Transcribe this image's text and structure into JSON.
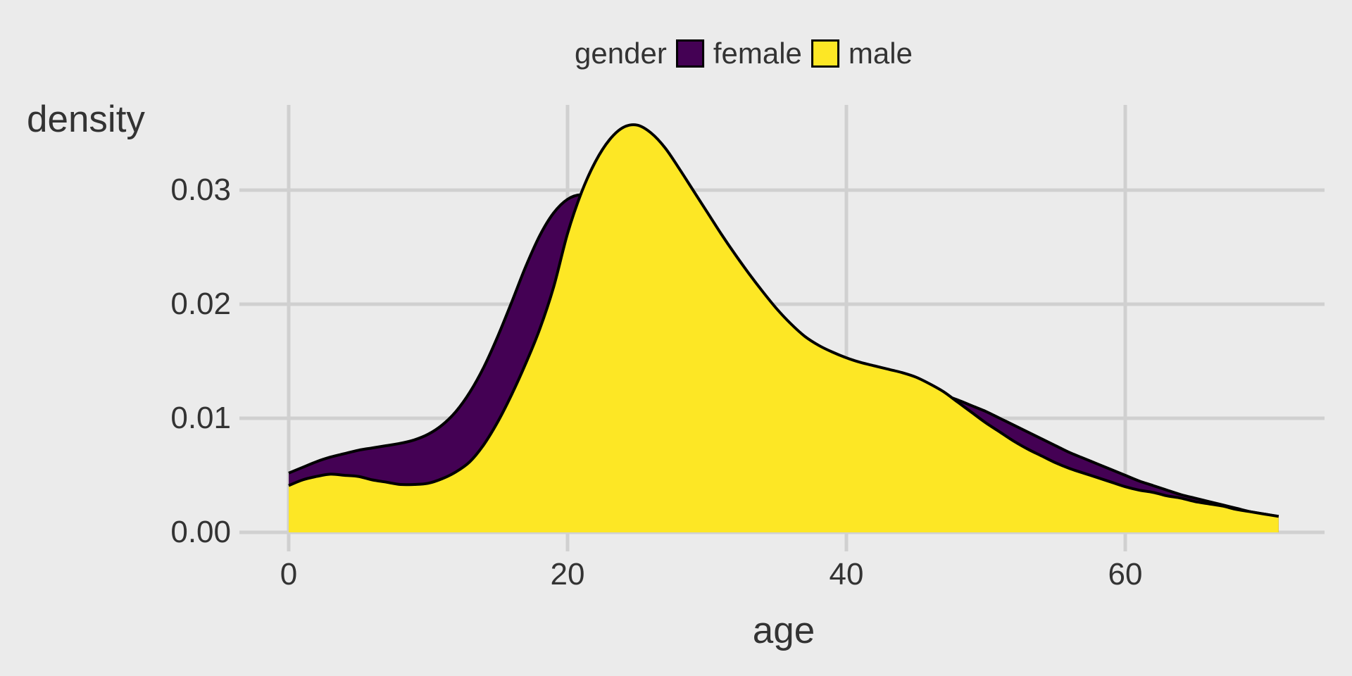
{
  "figure": {
    "background_color": "#EBEBEB",
    "grid_color": "#D0D0D0",
    "text_color": "#333333",
    "curve_outline_color": "#000000"
  },
  "legend": {
    "title": "gender",
    "items": [
      {
        "label": "female",
        "color": "#440154"
      },
      {
        "label": "male",
        "color": "#FDE725"
      }
    ]
  },
  "axes": {
    "x_title": "age",
    "y_title": "density",
    "x_tick_labels": [
      "0",
      "20",
      "40",
      "60"
    ],
    "y_tick_labels": [
      "0.00",
      "0.01",
      "0.02",
      "0.03"
    ]
  },
  "chart_data": {
    "type": "area",
    "subtype": "kernel-density",
    "title": "",
    "xlabel": "age",
    "ylabel": "density",
    "legend_title": "gender",
    "legend_position": "top-center",
    "grid": true,
    "xlim": [
      -3.3,
      74.3
    ],
    "ylim": [
      0,
      0.0375
    ],
    "x_ticks": [
      0,
      20,
      40,
      60
    ],
    "y_ticks": [
      0,
      0.01,
      0.02,
      0.03
    ],
    "series": [
      {
        "name": "female",
        "color": "#440154",
        "x": [
          0,
          1,
          2,
          3,
          4,
          5,
          6,
          7,
          8,
          9,
          10,
          11,
          12,
          13,
          14,
          15,
          16,
          17,
          18,
          19,
          20,
          21,
          22,
          23,
          24,
          25,
          26,
          27,
          28,
          29,
          30,
          31,
          32,
          33,
          34,
          35,
          36,
          37,
          38,
          39,
          40,
          41,
          42,
          43,
          44,
          45,
          46,
          47,
          48,
          49,
          50,
          51,
          52,
          53,
          54,
          55,
          56,
          57,
          58,
          59,
          60,
          61,
          62,
          63,
          64,
          65,
          66,
          67,
          68,
          69,
          70,
          71
        ],
        "y": [
          0.0052,
          0.0057,
          0.0062,
          0.0066,
          0.0069,
          0.0072,
          0.0074,
          0.0076,
          0.0078,
          0.0081,
          0.0086,
          0.0094,
          0.0106,
          0.0123,
          0.0145,
          0.0172,
          0.0202,
          0.0233,
          0.026,
          0.028,
          0.0292,
          0.0296,
          0.0293,
          0.0287,
          0.0278,
          0.0267,
          0.0255,
          0.0243,
          0.0231,
          0.0219,
          0.0208,
          0.0197,
          0.0187,
          0.0178,
          0.0169,
          0.0161,
          0.0154,
          0.0148,
          0.0143,
          0.0138,
          0.0134,
          0.0131,
          0.0128,
          0.0126,
          0.0124,
          0.0122,
          0.0121,
          0.012,
          0.0116,
          0.0111,
          0.0106,
          0.01,
          0.0094,
          0.0088,
          0.0082,
          0.0076,
          0.007,
          0.0065,
          0.006,
          0.0055,
          0.005,
          0.0045,
          0.0041,
          0.0037,
          0.0033,
          0.003,
          0.0027,
          0.0024,
          0.0021,
          0.0018,
          0.0016,
          0.0014
        ]
      },
      {
        "name": "male",
        "color": "#FDE725",
        "x": [
          0,
          1,
          2,
          3,
          4,
          5,
          6,
          7,
          8,
          9,
          10,
          11,
          12,
          13,
          14,
          15,
          16,
          17,
          18,
          19,
          20,
          21,
          22,
          23,
          24,
          25,
          26,
          27,
          28,
          29,
          30,
          31,
          32,
          33,
          34,
          35,
          36,
          37,
          38,
          39,
          40,
          41,
          42,
          43,
          44,
          45,
          46,
          47,
          48,
          49,
          50,
          51,
          52,
          53,
          54,
          55,
          56,
          57,
          58,
          59,
          60,
          61,
          62,
          63,
          64,
          65,
          66,
          67,
          68,
          69,
          70,
          71
        ],
        "y": [
          0.0041,
          0.0046,
          0.0049,
          0.0051,
          0.005,
          0.0049,
          0.0046,
          0.0044,
          0.0042,
          0.0042,
          0.0043,
          0.0047,
          0.0053,
          0.0062,
          0.0077,
          0.0097,
          0.0121,
          0.0148,
          0.0178,
          0.0215,
          0.0262,
          0.0298,
          0.0325,
          0.0344,
          0.0355,
          0.0357,
          0.035,
          0.0337,
          0.0319,
          0.03,
          0.0281,
          0.0262,
          0.0244,
          0.0227,
          0.0211,
          0.0196,
          0.0183,
          0.0172,
          0.0164,
          0.0158,
          0.0153,
          0.0149,
          0.0146,
          0.0143,
          0.014,
          0.0136,
          0.013,
          0.0123,
          0.0114,
          0.0105,
          0.0096,
          0.0088,
          0.008,
          0.0073,
          0.0067,
          0.0061,
          0.0056,
          0.0052,
          0.0048,
          0.0044,
          0.004,
          0.0037,
          0.0035,
          0.0032,
          0.003,
          0.0027,
          0.0025,
          0.0023,
          0.002,
          0.0018,
          0.0016,
          0.0014
        ]
      }
    ]
  }
}
